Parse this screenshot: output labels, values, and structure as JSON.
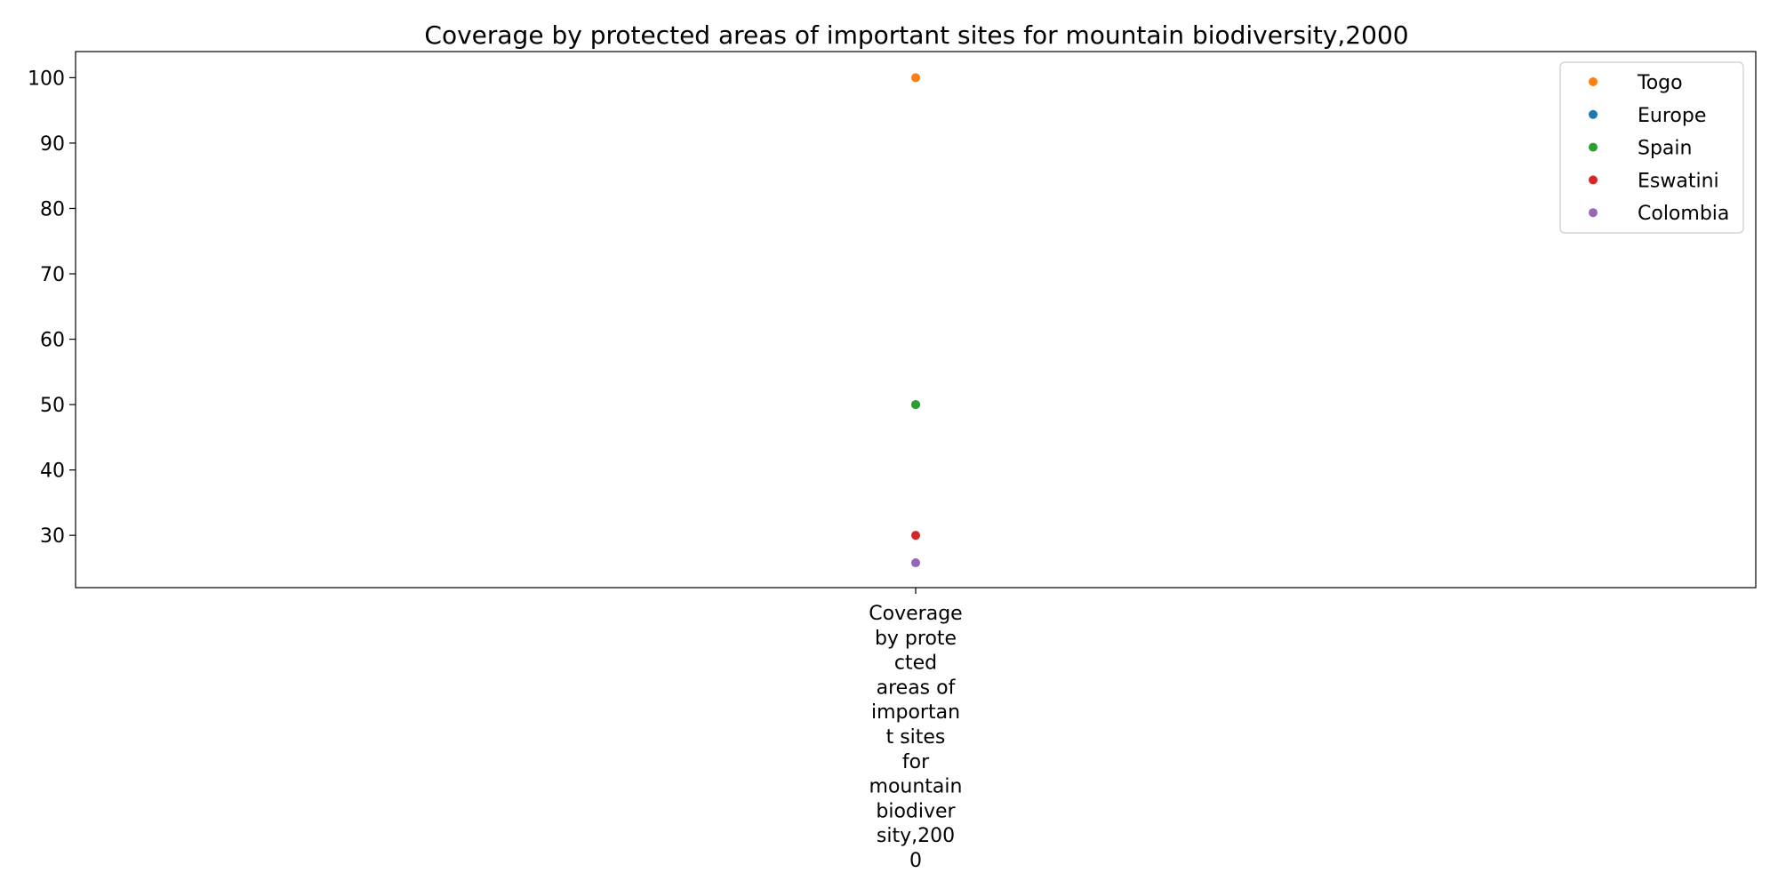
{
  "chart_data": {
    "type": "scatter",
    "title": "Coverage by protected areas of important sites for mountain biodiversity,2000",
    "xlabel": "",
    "ylabel": "",
    "categories": [
      "Coverage by prote cted areas of importan t sites for mountain biodiver sity,200 0"
    ],
    "category_label_lines": [
      "Coverage",
      "by prote",
      "cted",
      "areas of",
      "importan",
      "t sites",
      "for",
      "mountain",
      "biodiver",
      "sity,200",
      "0"
    ],
    "ylim": [
      22,
      104
    ],
    "yticks": [
      30,
      40,
      50,
      60,
      70,
      80,
      90,
      100
    ],
    "grid": false,
    "legend_position": "top-right",
    "series": [
      {
        "name": "Togo",
        "color": "#ff7f0e",
        "values": [
          100
        ]
      },
      {
        "name": "Europe",
        "color": "#1f77b4",
        "values": [
          50
        ]
      },
      {
        "name": "Spain",
        "color": "#2ca02c",
        "values": [
          50
        ]
      },
      {
        "name": "Eswatini",
        "color": "#d62728",
        "values": [
          30
        ]
      },
      {
        "name": "Colombia",
        "color": "#9467bd",
        "values": [
          25.8
        ]
      }
    ]
  }
}
